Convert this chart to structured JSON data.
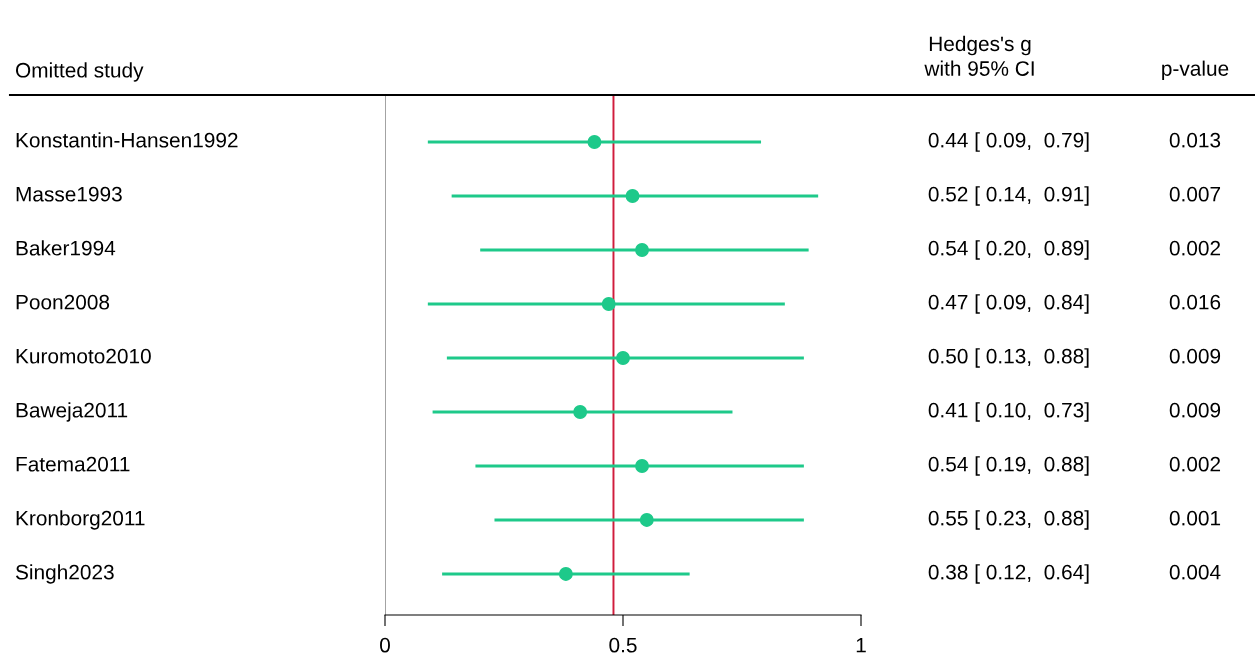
{
  "chart_data": {
    "type": "scatter",
    "orientation": "horizontal",
    "ylabel": "Omitted study",
    "categories": [
      "Konstantin-Hansen1992",
      "Masse1993",
      "Baker1994",
      "Poon2008",
      "Kuromoto2010",
      "Baweja2011",
      "Fatema2011",
      "Kronborg2011",
      "Singh2023"
    ],
    "values": [
      0.44,
      0.52,
      0.54,
      0.47,
      0.5,
      0.41,
      0.54,
      0.55,
      0.38
    ],
    "errors": [
      [
        0.09,
        0.79
      ],
      [
        0.14,
        0.91
      ],
      [
        0.2,
        0.89
      ],
      [
        0.09,
        0.84
      ],
      [
        0.13,
        0.88
      ],
      [
        0.1,
        0.73
      ],
      [
        0.19,
        0.88
      ],
      [
        0.23,
        0.88
      ],
      [
        0.12,
        0.64
      ]
    ],
    "value_labels": [
      "0.44 [ 0.09,  0.79]",
      "0.52 [ 0.14,  0.91]",
      "0.54 [ 0.20,  0.89]",
      "0.47 [ 0.09,  0.84]",
      "0.50 [ 0.13,  0.88]",
      "0.41 [ 0.10,  0.73]",
      "0.54 [ 0.19,  0.88]",
      "0.55 [ 0.23,  0.88]",
      "0.38 [ 0.12,  0.64]"
    ],
    "color": "#1ec98a",
    "marker": "circle",
    "xlim": [
      0,
      1
    ],
    "xticks": [
      0,
      0.5,
      1
    ],
    "grid": false,
    "tick_labels": "x",
    "ref_lines": [
      {
        "axis": "x",
        "value": 0,
        "color": "#a0a0a0"
      },
      {
        "axis": "x",
        "value": 0.48,
        "color": "#d01c3c"
      }
    ],
    "annotations": [
      "Hedges's g\nwith 95% CI",
      "p-value",
      "0.013",
      "0.007",
      "0.002",
      "0.016",
      "0.009",
      "0.009",
      "0.002",
      "0.001",
      "0.004"
    ]
  }
}
